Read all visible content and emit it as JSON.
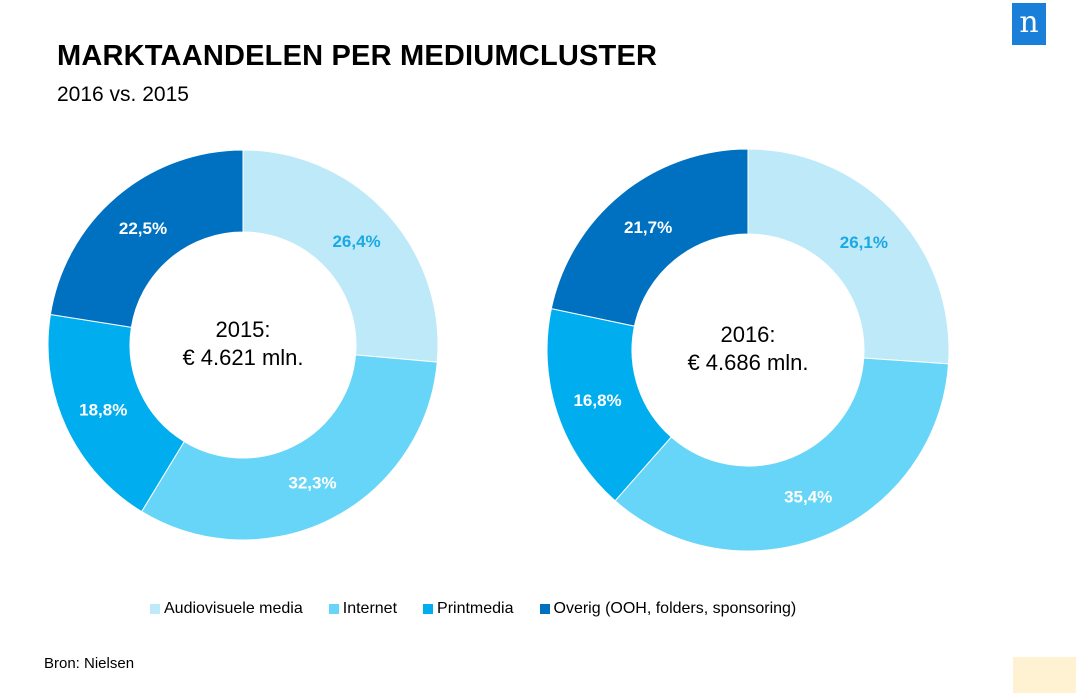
{
  "title": "MARKTAANDELEN PER MEDIUMCLUSTER",
  "subtitle": "2016 vs. 2015",
  "logo": "n",
  "source": "Bron: Nielsen",
  "colors": {
    "audiovisueel": "#bde9f9",
    "internet": "#67d5f7",
    "print": "#00aeef",
    "overig": "#0071c1"
  },
  "legend": [
    {
      "label": "Audiovisuele media",
      "color": "#bde9f9"
    },
    {
      "label": "Internet",
      "color": "#67d5f7"
    },
    {
      "label": "Printmedia",
      "color": "#00aeef"
    },
    {
      "label": "Overig (OOH, folders, sponsoring)",
      "color": "#0071c1"
    }
  ],
  "chart_data": [
    {
      "type": "pie",
      "center_year": "2015:",
      "center_total": "€ 4.621 mln.",
      "slices": [
        {
          "label": "Audiovisuele media",
          "value": 26.4,
          "text": "26,4%",
          "color": "#bde9f9",
          "label_color": "#1ba9e4"
        },
        {
          "label": "Internet",
          "value": 32.3,
          "text": "32,3%",
          "color": "#67d5f7",
          "label_color": "#ffffff"
        },
        {
          "label": "Printmedia",
          "value": 18.8,
          "text": "18,8%",
          "color": "#00aeef",
          "label_color": "#ffffff"
        },
        {
          "label": "Overig (OOH, folders, sponsoring)",
          "value": 22.5,
          "text": "22,5%",
          "color": "#0071c1",
          "label_color": "#ffffff"
        }
      ]
    },
    {
      "type": "pie",
      "center_year": "2016:",
      "center_total": "€ 4.686 mln.",
      "slices": [
        {
          "label": "Audiovisuele media",
          "value": 26.1,
          "text": "26,1%",
          "color": "#bde9f9",
          "label_color": "#1ba9e4"
        },
        {
          "label": "Internet",
          "value": 35.4,
          "text": "35,4%",
          "color": "#67d5f7",
          "label_color": "#ffffff"
        },
        {
          "label": "Printmedia",
          "value": 16.8,
          "text": "16,8%",
          "color": "#00aeef",
          "label_color": "#ffffff"
        },
        {
          "label": "Overig (OOH, folders, sponsoring)",
          "value": 21.7,
          "text": "21,7%",
          "color": "#0071c1",
          "label_color": "#ffffff"
        }
      ]
    }
  ]
}
